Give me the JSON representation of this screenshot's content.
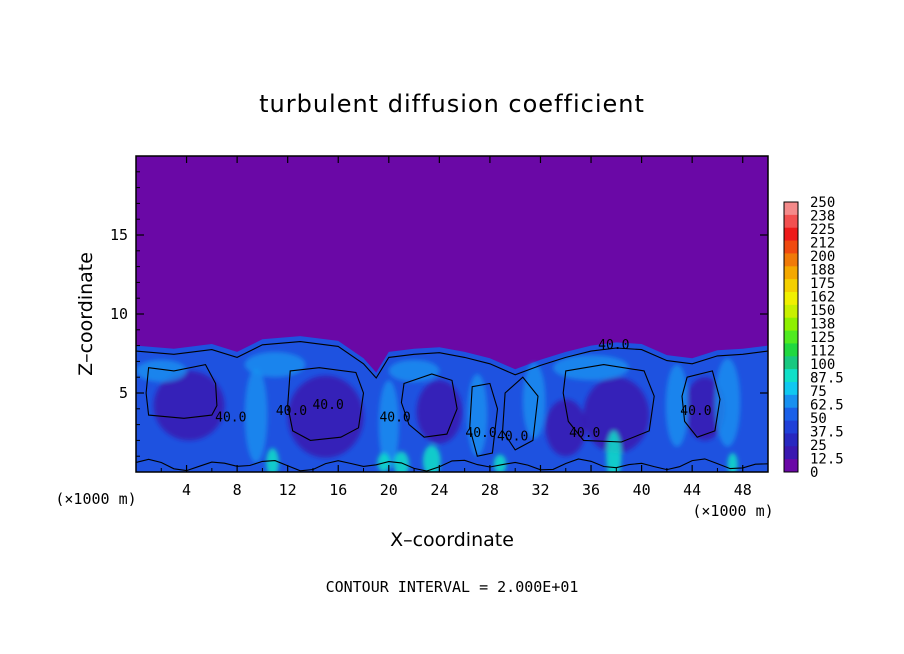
{
  "chart_data": {
    "type": "heatmap",
    "title": "turbulent diffusion coefficient",
    "xlabel": "X–coordinate",
    "ylabel": "Z–coordinate",
    "x_unit": "(×1000 m)",
    "y_unit": "(×1000 m)",
    "xlim": [
      0,
      50
    ],
    "ylim": [
      0,
      20
    ],
    "x_ticks": [
      "4",
      "8",
      "12",
      "16",
      "20",
      "24",
      "28",
      "32",
      "36",
      "40",
      "44",
      "48"
    ],
    "y_ticks": [
      "5",
      "10",
      "15"
    ],
    "contour_interval_text": "CONTOUR INTERVAL = 2.000E+01",
    "contour_labels": [
      {
        "text": "40.0",
        "x": 7.5,
        "z": 3.2
      },
      {
        "text": "40.0",
        "x": 12.3,
        "z": 3.6
      },
      {
        "text": "40.0",
        "x": 15.2,
        "z": 4.0
      },
      {
        "text": "40.0",
        "x": 20.5,
        "z": 3.2
      },
      {
        "text": "40.0",
        "x": 27.3,
        "z": 2.2
      },
      {
        "text": "40.0",
        "x": 29.8,
        "z": 2.0
      },
      {
        "text": "40.0",
        "x": 35.5,
        "z": 2.2
      },
      {
        "text": "40.0",
        "x": 37.8,
        "z": 7.8
      },
      {
        "text": "40.0",
        "x": 44.3,
        "z": 3.6
      }
    ],
    "colorbar": {
      "labels": [
        "250",
        "238",
        "225",
        "212",
        "200",
        "188",
        "175",
        "162",
        "150",
        "138",
        "125",
        "112",
        "100",
        "87.5",
        "75",
        "62.5",
        "50",
        "37.5",
        "25",
        "12.5",
        "0"
      ],
      "colors": [
        "#f48a8a",
        "#f25050",
        "#ee1a1a",
        "#f04a10",
        "#f07a08",
        "#f4a800",
        "#f4d000",
        "#f0f000",
        "#c8f000",
        "#8ef000",
        "#50ea20",
        "#20d840",
        "#18c880",
        "#10e0c8",
        "#10c8f0",
        "#1890f0",
        "#1a60e8",
        "#2040d8",
        "#2828c0",
        "#3a18b0",
        "#6a08a6"
      ]
    },
    "background_color": "#6a08a6",
    "field_colors": {
      "low": "#3a18b0",
      "mid": "#1e52e0",
      "high": "#1890f0",
      "peak": "#10e0c8"
    }
  }
}
